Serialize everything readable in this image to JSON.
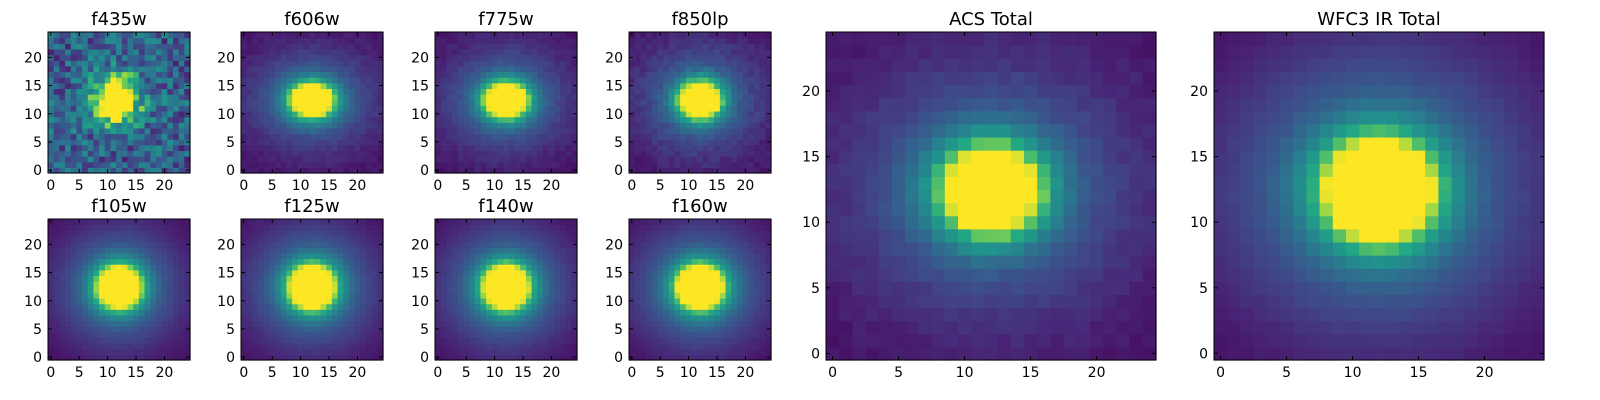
{
  "chart_data": {
    "type": "heatmap",
    "grid_size": 25,
    "x_range": [
      -0.5,
      24.5
    ],
    "y_range": [
      -0.5,
      24.5
    ],
    "y_origin": "lower",
    "colormap": "viridis",
    "panels": [
      {
        "title": "f435w",
        "xticks": [
          0,
          5,
          10,
          15,
          20
        ],
        "yticks": [
          0,
          5,
          10,
          15,
          20
        ],
        "center": [
          11.5,
          12.5
        ],
        "sigma": [
          2.6,
          2.8
        ],
        "peak": 1.0,
        "background": 0.35,
        "noise": 0.5,
        "halo": 0.1
      },
      {
        "title": "f606w",
        "xticks": [
          0,
          5,
          10,
          15,
          20
        ],
        "yticks": [
          0,
          5,
          10,
          15,
          20
        ],
        "center": [
          12.0,
          12.5
        ],
        "sigma": [
          2.9,
          2.3
        ],
        "peak": 1.0,
        "background": 0.06,
        "noise": 0.06,
        "halo": 0.42
      },
      {
        "title": "f775w",
        "xticks": [
          0,
          5,
          10,
          15,
          20
        ],
        "yticks": [
          0,
          5,
          10,
          15,
          20
        ],
        "center": [
          12.0,
          12.5
        ],
        "sigma": [
          2.9,
          2.4
        ],
        "peak": 1.0,
        "background": 0.06,
        "noise": 0.06,
        "halo": 0.42
      },
      {
        "title": "f850lp",
        "xticks": [
          0,
          5,
          10,
          15,
          20
        ],
        "yticks": [
          0,
          5,
          10,
          15,
          20
        ],
        "center": [
          12.0,
          12.5
        ],
        "sigma": [
          2.8,
          2.5
        ],
        "peak": 1.0,
        "background": 0.07,
        "noise": 0.08,
        "halo": 0.4
      },
      {
        "title": "f105w",
        "xticks": [
          0,
          5,
          10,
          15,
          20
        ],
        "yticks": [
          0,
          5,
          10,
          15,
          20
        ],
        "center": [
          12.0,
          12.5
        ],
        "sigma": [
          3.0,
          2.9
        ],
        "peak": 1.0,
        "background": 0.02,
        "noise": 0.02,
        "halo": 0.48
      },
      {
        "title": "f125w",
        "xticks": [
          0,
          5,
          10,
          15,
          20
        ],
        "yticks": [
          0,
          5,
          10,
          15,
          20
        ],
        "center": [
          12.0,
          12.5
        ],
        "sigma": [
          3.1,
          3.0
        ],
        "peak": 1.0,
        "background": 0.02,
        "noise": 0.02,
        "halo": 0.5
      },
      {
        "title": "f140w",
        "xticks": [
          0,
          5,
          10,
          15,
          20
        ],
        "yticks": [
          0,
          5,
          10,
          15,
          20
        ],
        "center": [
          12.0,
          12.5
        ],
        "sigma": [
          3.1,
          3.0
        ],
        "peak": 1.0,
        "background": 0.02,
        "noise": 0.02,
        "halo": 0.5
      },
      {
        "title": "f160w",
        "xticks": [
          0,
          5,
          10,
          15,
          20
        ],
        "yticks": [
          0,
          5,
          10,
          15,
          20
        ],
        "center": [
          12.0,
          12.5
        ],
        "sigma": [
          3.2,
          3.0
        ],
        "peak": 1.0,
        "background": 0.02,
        "noise": 0.02,
        "halo": 0.5
      },
      {
        "title": "ACS Total",
        "xticks": [
          0,
          5,
          10,
          15,
          20
        ],
        "yticks": [
          0,
          5,
          10,
          15,
          20
        ],
        "center": [
          12.0,
          12.5
        ],
        "sigma": [
          2.9,
          2.6
        ],
        "peak": 1.0,
        "background": 0.05,
        "noise": 0.05,
        "halo": 0.4
      },
      {
        "title": "WFC3 IR Total",
        "xticks": [
          0,
          5,
          10,
          15,
          20
        ],
        "yticks": [
          0,
          5,
          10,
          15,
          20
        ],
        "center": [
          12.0,
          12.5
        ],
        "sigma": [
          3.2,
          3.0
        ],
        "peak": 1.0,
        "background": 0.02,
        "noise": 0.02,
        "halo": 0.5
      }
    ]
  }
}
